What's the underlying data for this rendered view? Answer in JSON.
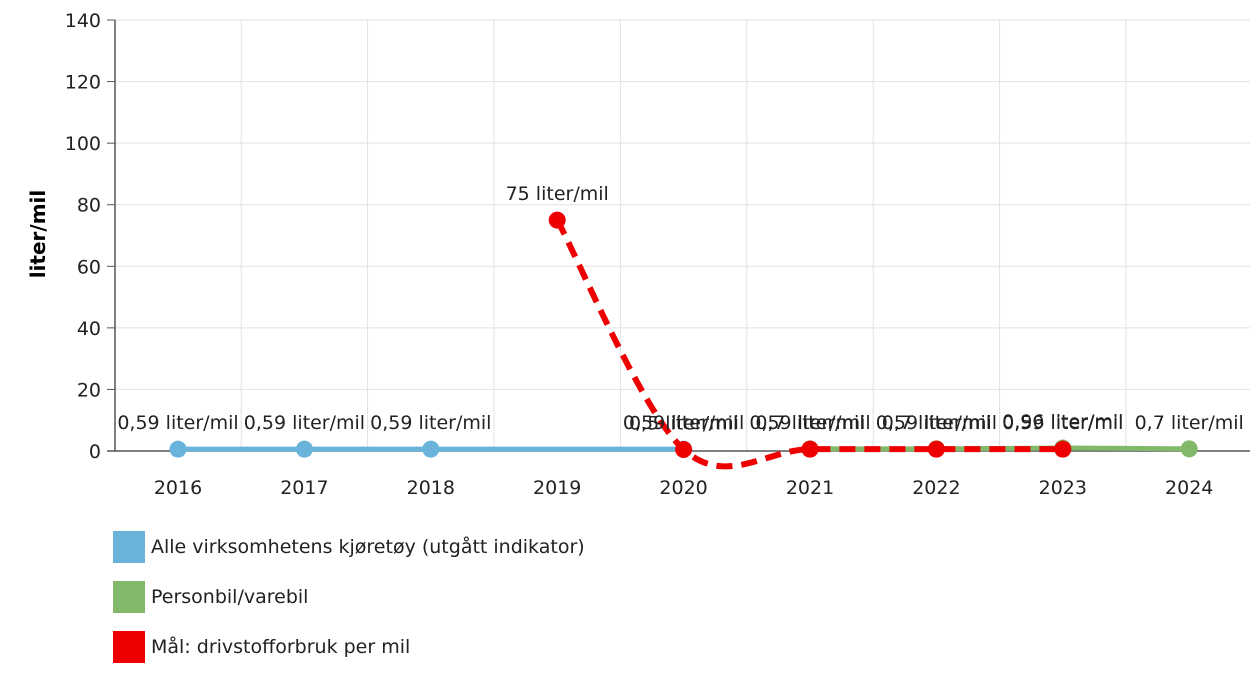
{
  "chart_data": {
    "type": "line",
    "title": "",
    "ylabel": "liter/mil",
    "xlabel": "",
    "ylim": [
      0,
      140
    ],
    "yticks": [
      0,
      20,
      40,
      60,
      80,
      100,
      120,
      140
    ],
    "x": [
      "2016",
      "2017",
      "2018",
      "2019",
      "2020",
      "2021",
      "2022",
      "2023",
      "2024"
    ],
    "grid": true,
    "legend_position": "bottom-left",
    "series": [
      {
        "name": "Alle virksomhetens kjøretøy (utgått indikator)",
        "color": "#6ab4dc",
        "style": "solid",
        "values": [
          0.59,
          0.59,
          0.59,
          null,
          0.59,
          null,
          null,
          null,
          null
        ],
        "labels": [
          "0,59 liter/mil",
          "0,59 liter/mil",
          "0,59 liter/mil",
          null,
          "0,59 liter/mil",
          null,
          null,
          null,
          null
        ]
      },
      {
        "name": "Personbil/varebil",
        "color": "#82b86a",
        "style": "solid",
        "values": [
          null,
          null,
          null,
          null,
          null,
          0.7,
          0.7,
          0.96,
          0.7
        ],
        "labels": [
          null,
          null,
          null,
          null,
          null,
          "0,7 liter/mil",
          "0,7 liter/mil",
          "0,96 liter/mil",
          "0,7 liter/mil"
        ]
      },
      {
        "name": "Mål: drivstofforbruk per mil",
        "color": "#ee0000",
        "style": "dashed",
        "values": [
          null,
          null,
          null,
          75,
          0.5,
          0.59,
          0.59,
          0.59,
          null
        ],
        "labels": [
          null,
          null,
          null,
          "75 liter/mil",
          "0,5 liter/mil",
          "0,59 liter/mil",
          "0,59 liter/mil",
          "0,59 liter/mil",
          null
        ]
      }
    ]
  }
}
